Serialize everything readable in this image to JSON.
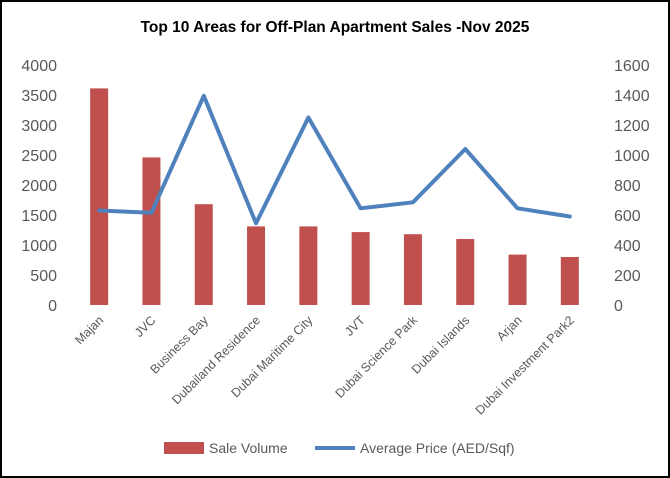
{
  "chart_data": {
    "type": "bar+line",
    "title": "Top 10 Areas for Off-Plan Apartment Sales -Nov 2025",
    "categories": [
      "Majan",
      "JVC",
      "Business Bay",
      "Dubailand Residence",
      "Dubai Maritime City",
      "JVT",
      "Dubai Science Park",
      "Dubai Islands",
      "Arjan",
      "Dubai Investment Park2"
    ],
    "series": [
      {
        "name": "Sale Volume",
        "type": "bar",
        "axis": "left",
        "color": "#C0504D",
        "values": [
          3610,
          2460,
          1680,
          1310,
          1310,
          1215,
          1180,
          1100,
          840,
          800
        ]
      },
      {
        "name": "Average Price (AED/Sqf)",
        "type": "line",
        "axis": "right",
        "color": "#4F81BD",
        "values": [
          630,
          615,
          1395,
          545,
          1250,
          645,
          685,
          1040,
          645,
          590
        ]
      }
    ],
    "y_left": {
      "min": 0,
      "max": 4000,
      "ticks": [
        0,
        500,
        1000,
        1500,
        2000,
        2500,
        3000,
        3500,
        4000
      ]
    },
    "y_right": {
      "min": 0,
      "max": 1600,
      "ticks": [
        0,
        200,
        400,
        600,
        800,
        1000,
        1200,
        1400,
        1600
      ]
    },
    "grid": false,
    "legend": "bottom"
  }
}
